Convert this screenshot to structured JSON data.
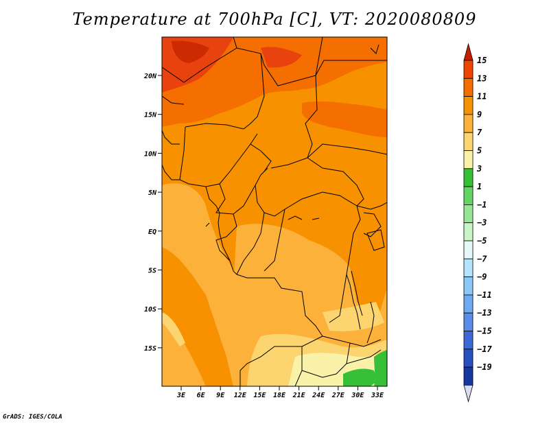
{
  "title": "Temperature at 700hPa [C], VT: 2020080809",
  "footer": "GrADS: IGES/COLA",
  "lat_labels": [
    "20N",
    "15N",
    "10N",
    "5N",
    "EQ",
    "5S",
    "10S",
    "15S"
  ],
  "lon_labels": [
    "3E",
    "6E",
    "9E",
    "12E",
    "15E",
    "18E",
    "21E",
    "24E",
    "27E",
    "30E",
    "33E"
  ],
  "colorbar": {
    "labels": [
      "15",
      "13",
      "11",
      "9",
      "7",
      "5",
      "3",
      "1",
      "−1",
      "−3",
      "−5",
      "−7",
      "−9",
      "−11",
      "−13",
      "−15",
      "−17",
      "−19"
    ],
    "colors": [
      "#c81e00",
      "#ee4500",
      "#f56e00",
      "#f79100",
      "#fbb13a",
      "#fdd570",
      "#faf2a8",
      "#38bf38",
      "#64d564",
      "#96e696",
      "#c8f5c8",
      "#e6f7f7",
      "#b4e4fa",
      "#8cc8f5",
      "#6eaaf0",
      "#5a8cea",
      "#3c69d8",
      "#2850c0",
      "#1437a0",
      "#0a1e78"
    ]
  },
  "palette": {
    "t13_15": "#e8420e",
    "t11_13": "#f56e00",
    "t9_11": "#f79100",
    "t7_9": "#fbb13a",
    "t5_7": "#fdd570",
    "t3_5": "#faf2a8",
    "t1_3": "#38bf38"
  }
}
